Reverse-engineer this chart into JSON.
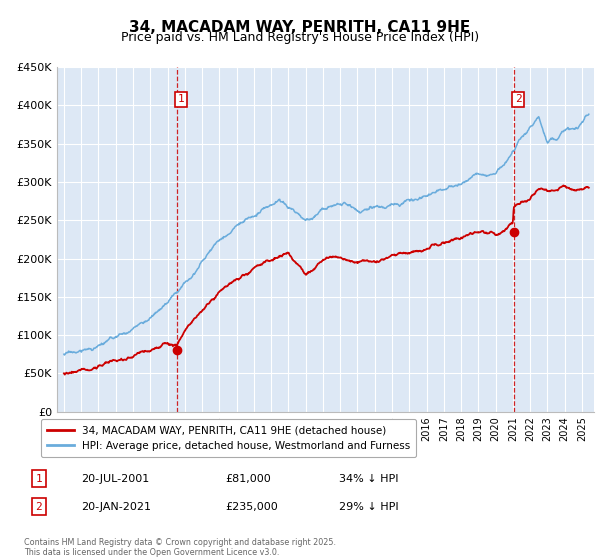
{
  "title": "34, MACADAM WAY, PENRITH, CA11 9HE",
  "subtitle": "Price paid vs. HM Land Registry's House Price Index (HPI)",
  "title_fontsize": 11,
  "subtitle_fontsize": 9,
  "background_color": "#ffffff",
  "plot_bg_color": "#dde8f5",
  "grid_color": "#ffffff",
  "hpi_color": "#6aacdc",
  "price_color": "#cc0000",
  "ylim": [
    0,
    450000
  ],
  "yticks": [
    0,
    50000,
    100000,
    150000,
    200000,
    250000,
    300000,
    350000,
    400000,
    450000
  ],
  "xlim_start": 1994.6,
  "xlim_end": 2025.7,
  "sale1_x": 2001.55,
  "sale1_y": 81000,
  "sale1_label": "1",
  "sale2_x": 2021.05,
  "sale2_y": 235000,
  "sale2_label": "2",
  "legend1_text": "34, MACADAM WAY, PENRITH, CA11 9HE (detached house)",
  "legend2_text": "HPI: Average price, detached house, Westmorland and Furness",
  "annot1_date": "20-JUL-2001",
  "annot1_price": "£81,000",
  "annot1_hpi": "34% ↓ HPI",
  "annot2_date": "20-JAN-2021",
  "annot2_price": "£235,000",
  "annot2_hpi": "29% ↓ HPI",
  "footer": "Contains HM Land Registry data © Crown copyright and database right 2025.\nThis data is licensed under the Open Government Licence v3.0."
}
